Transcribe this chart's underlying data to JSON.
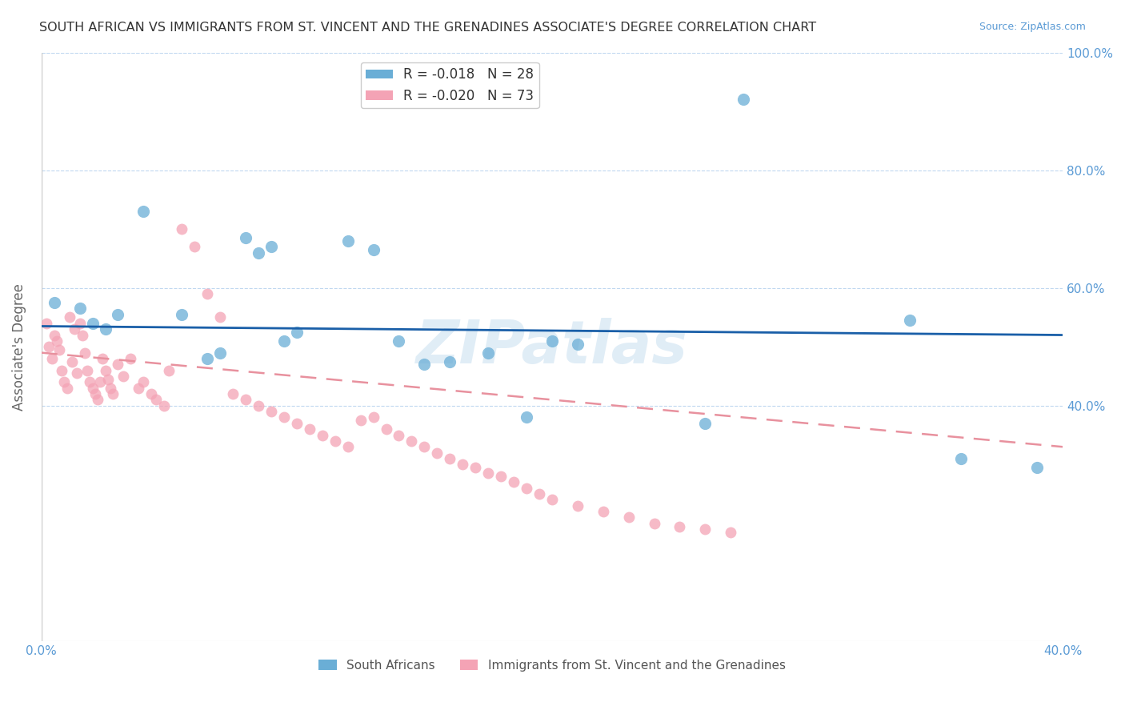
{
  "title": "SOUTH AFRICAN VS IMMIGRANTS FROM ST. VINCENT AND THE GRENADINES ASSOCIATE'S DEGREE CORRELATION CHART",
  "source": "Source: ZipAtlas.com",
  "ylabel": "Associate's Degree",
  "xlim": [
    0.0,
    0.4
  ],
  "ylim": [
    0.0,
    1.0
  ],
  "yticks": [
    0.0,
    0.2,
    0.4,
    0.6,
    0.8,
    1.0
  ],
  "ytick_labels": [
    "",
    "",
    "40.0%",
    "60.0%",
    "80.0%",
    "100.0%"
  ],
  "xticks": [
    0.0,
    0.05,
    0.1,
    0.15,
    0.2,
    0.25,
    0.3,
    0.35,
    0.4
  ],
  "blue_R": "-0.018",
  "blue_N": "28",
  "pink_R": "-0.020",
  "pink_N": "73",
  "legend_label_blue": "South Africans",
  "legend_label_pink": "Immigrants from St. Vincent and the Grenadines",
  "watermark": "ZIPatlas",
  "blue_color": "#6aaed6",
  "pink_color": "#f4a3b5",
  "blue_line_color": "#1a5fa8",
  "pink_line_color": "#e8919e",
  "title_color": "#333333",
  "axis_color": "#5b9bd5",
  "grid_color": "#c0d8f0",
  "blue_scatter_x": [
    0.005,
    0.015,
    0.02,
    0.025,
    0.03,
    0.04,
    0.055,
    0.065,
    0.07,
    0.08,
    0.085,
    0.09,
    0.095,
    0.1,
    0.12,
    0.13,
    0.14,
    0.15,
    0.16,
    0.175,
    0.19,
    0.2,
    0.21,
    0.26,
    0.275,
    0.34,
    0.36,
    0.39
  ],
  "blue_scatter_y": [
    0.575,
    0.565,
    0.54,
    0.53,
    0.555,
    0.73,
    0.555,
    0.48,
    0.49,
    0.685,
    0.66,
    0.67,
    0.51,
    0.525,
    0.68,
    0.665,
    0.51,
    0.47,
    0.475,
    0.49,
    0.38,
    0.51,
    0.505,
    0.37,
    0.92,
    0.545,
    0.31,
    0.295
  ],
  "pink_scatter_x": [
    0.002,
    0.003,
    0.004,
    0.005,
    0.006,
    0.007,
    0.008,
    0.009,
    0.01,
    0.011,
    0.012,
    0.013,
    0.014,
    0.015,
    0.016,
    0.017,
    0.018,
    0.019,
    0.02,
    0.021,
    0.022,
    0.023,
    0.024,
    0.025,
    0.026,
    0.027,
    0.028,
    0.03,
    0.032,
    0.035,
    0.038,
    0.04,
    0.043,
    0.045,
    0.048,
    0.05,
    0.055,
    0.06,
    0.065,
    0.07,
    0.075,
    0.08,
    0.085,
    0.09,
    0.095,
    0.1,
    0.105,
    0.11,
    0.115,
    0.12,
    0.125,
    0.13,
    0.135,
    0.14,
    0.145,
    0.15,
    0.155,
    0.16,
    0.165,
    0.17,
    0.175,
    0.18,
    0.185,
    0.19,
    0.195,
    0.2,
    0.21,
    0.22,
    0.23,
    0.24,
    0.25,
    0.26,
    0.27
  ],
  "pink_scatter_y": [
    0.54,
    0.5,
    0.48,
    0.52,
    0.51,
    0.495,
    0.46,
    0.44,
    0.43,
    0.55,
    0.475,
    0.53,
    0.455,
    0.54,
    0.52,
    0.49,
    0.46,
    0.44,
    0.43,
    0.42,
    0.41,
    0.44,
    0.48,
    0.46,
    0.445,
    0.43,
    0.42,
    0.47,
    0.45,
    0.48,
    0.43,
    0.44,
    0.42,
    0.41,
    0.4,
    0.46,
    0.7,
    0.67,
    0.59,
    0.55,
    0.42,
    0.41,
    0.4,
    0.39,
    0.38,
    0.37,
    0.36,
    0.35,
    0.34,
    0.33,
    0.375,
    0.38,
    0.36,
    0.35,
    0.34,
    0.33,
    0.32,
    0.31,
    0.3,
    0.295,
    0.285,
    0.28,
    0.27,
    0.26,
    0.25,
    0.24,
    0.23,
    0.22,
    0.21,
    0.2,
    0.195,
    0.19,
    0.185
  ],
  "blue_trend_x": [
    0.0,
    0.4
  ],
  "blue_trend_y": [
    0.535,
    0.52
  ],
  "pink_trend_x": [
    0.0,
    0.4
  ],
  "pink_trend_y": [
    0.49,
    0.33
  ]
}
